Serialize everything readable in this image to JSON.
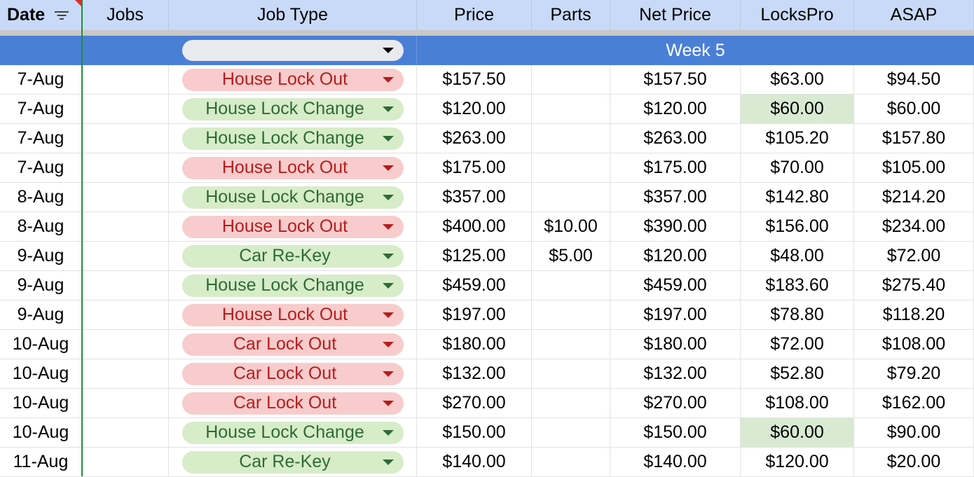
{
  "headers": {
    "date": "Date",
    "jobs": "Jobs",
    "job_type": "Job Type",
    "price": "Price",
    "parts": "Parts",
    "net_price": "Net Price",
    "lockspro": "LocksPro",
    "asap": "ASAP"
  },
  "week_label": "Week 5",
  "colors": {
    "header_bg": "#c9daf8",
    "week_bg": "#4a7fd6",
    "freeze_line": "#1e8e3e",
    "chip_out_bg": "#f8cccc",
    "chip_out_text": "#b71c1c",
    "chip_change_bg": "#d7ecc9",
    "chip_change_text": "#2e6b35",
    "highlight_cell": "#d9ead3"
  },
  "icons": {
    "filter": "filter-icon",
    "dropdown": "chevron-down-icon"
  },
  "rows": [
    {
      "date": "7-Aug",
      "jobs": "",
      "job_type": "House Lock Out",
      "type_class": "out",
      "price": "$157.50",
      "parts": "",
      "net_price": "$157.50",
      "lockspro": "$63.00",
      "asap": "$94.50"
    },
    {
      "date": "7-Aug",
      "jobs": "",
      "job_type": "House Lock Change",
      "type_class": "change",
      "price": "$120.00",
      "parts": "",
      "net_price": "$120.00",
      "lockspro": "$60.00",
      "asap": "$60.00",
      "highlight_lockspro": true
    },
    {
      "date": "7-Aug",
      "jobs": "",
      "job_type": "House Lock Change",
      "type_class": "change",
      "price": "$263.00",
      "parts": "",
      "net_price": "$263.00",
      "lockspro": "$105.20",
      "asap": "$157.80"
    },
    {
      "date": "7-Aug",
      "jobs": "",
      "job_type": "House Lock Out",
      "type_class": "out",
      "price": "$175.00",
      "parts": "",
      "net_price": "$175.00",
      "lockspro": "$70.00",
      "asap": "$105.00"
    },
    {
      "date": "8-Aug",
      "jobs": "",
      "job_type": "House Lock Change",
      "type_class": "change",
      "price": "$357.00",
      "parts": "",
      "net_price": "$357.00",
      "lockspro": "$142.80",
      "asap": "$214.20"
    },
    {
      "date": "8-Aug",
      "jobs": "",
      "job_type": "House Lock Out",
      "type_class": "out",
      "price": "$400.00",
      "parts": "$10.00",
      "net_price": "$390.00",
      "lockspro": "$156.00",
      "asap": "$234.00"
    },
    {
      "date": "9-Aug",
      "jobs": "",
      "job_type": "Car Re-Key",
      "type_class": "change",
      "price": "$125.00",
      "parts": "$5.00",
      "net_price": "$120.00",
      "lockspro": "$48.00",
      "asap": "$72.00"
    },
    {
      "date": "9-Aug",
      "jobs": "",
      "job_type": "House Lock Change",
      "type_class": "change",
      "price": "$459.00",
      "parts": "",
      "net_price": "$459.00",
      "lockspro": "$183.60",
      "asap": "$275.40"
    },
    {
      "date": "9-Aug",
      "jobs": "",
      "job_type": "House Lock Out",
      "type_class": "out",
      "price": "$197.00",
      "parts": "",
      "net_price": "$197.00",
      "lockspro": "$78.80",
      "asap": "$118.20"
    },
    {
      "date": "10-Aug",
      "jobs": "",
      "job_type": "Car Lock Out",
      "type_class": "out",
      "price": "$180.00",
      "parts": "",
      "net_price": "$180.00",
      "lockspro": "$72.00",
      "asap": "$108.00"
    },
    {
      "date": "10-Aug",
      "jobs": "",
      "job_type": "Car Lock Out",
      "type_class": "out",
      "price": "$132.00",
      "parts": "",
      "net_price": "$132.00",
      "lockspro": "$52.80",
      "asap": "$79.20"
    },
    {
      "date": "10-Aug",
      "jobs": "",
      "job_type": "Car Lock Out",
      "type_class": "out",
      "price": "$270.00",
      "parts": "",
      "net_price": "$270.00",
      "lockspro": "$108.00",
      "asap": "$162.00"
    },
    {
      "date": "10-Aug",
      "jobs": "",
      "job_type": "House Lock Change",
      "type_class": "change",
      "price": "$150.00",
      "parts": "",
      "net_price": "$150.00",
      "lockspro": "$60.00",
      "asap": "$90.00",
      "highlight_lockspro": true
    },
    {
      "date": "11-Aug",
      "jobs": "",
      "job_type": "Car Re-Key",
      "type_class": "change",
      "price": "$140.00",
      "parts": "",
      "net_price": "$140.00",
      "lockspro": "$120.00",
      "asap": "$20.00"
    }
  ]
}
